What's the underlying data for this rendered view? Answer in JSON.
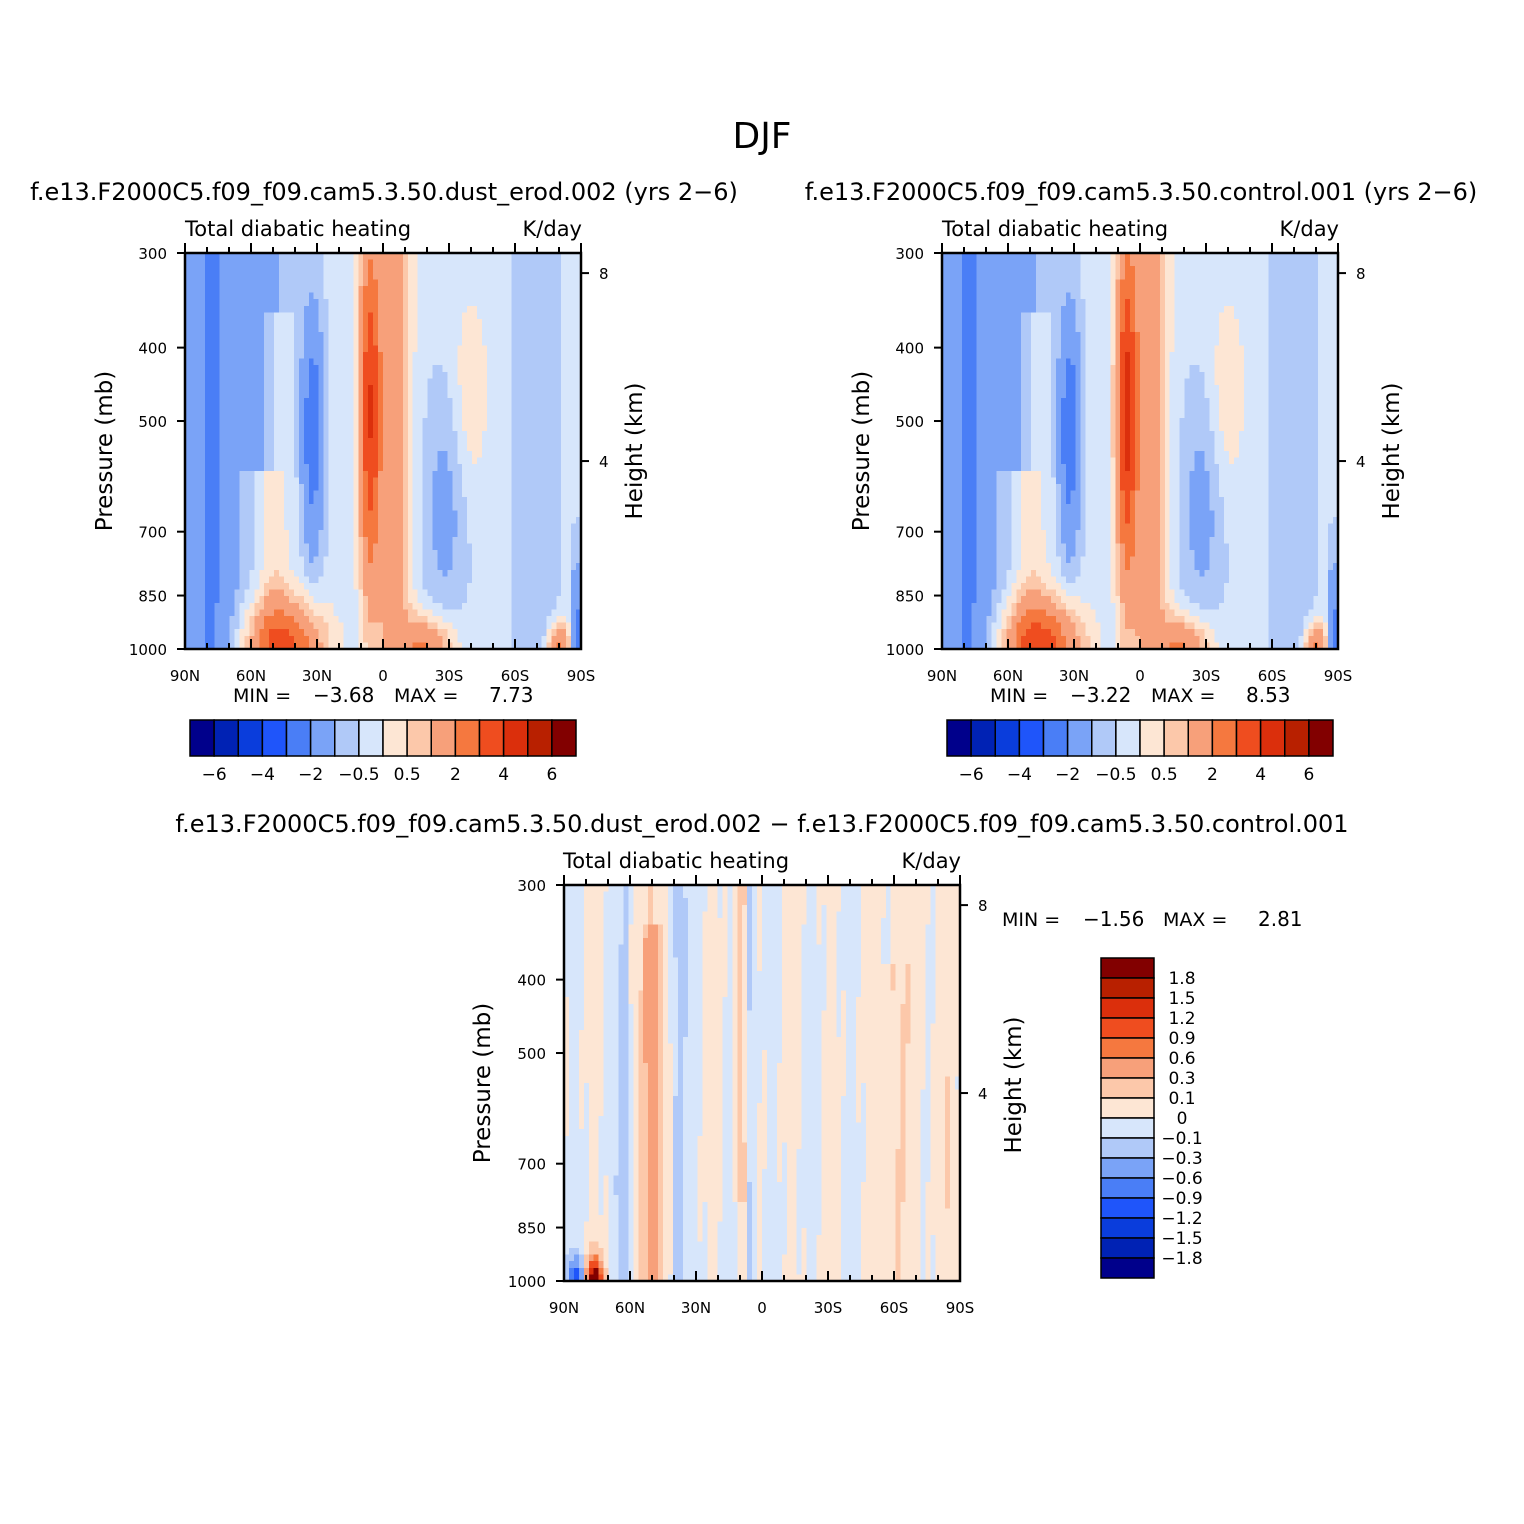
{
  "page_title": "DJF",
  "chart_data": [
    {
      "type": "heatmap",
      "id": "p1",
      "title": "f.e13.F2000C5.f09_f09.cam5.3.50.dust_erod.002 (yrs 2-6)",
      "left_label": "Total diabatic heating",
      "right_label": "K/day",
      "xlabel": "",
      "ylabel": "Pressure (mb)",
      "ylabel_right": "Height (km)",
      "x_ticks": [
        "90N",
        "60N",
        "30N",
        "0",
        "30S",
        "60S",
        "90S"
      ],
      "x_values": [
        90,
        60,
        30,
        0,
        -30,
        -60,
        -90
      ],
      "y_ticks": [
        "300",
        "400",
        "500",
        "700",
        "850",
        "1000"
      ],
      "y_values": [
        300,
        400,
        500,
        700,
        850,
        1000
      ],
      "ylim": [
        1000,
        300
      ],
      "y_log": true,
      "right_ticks": [
        "8",
        "4"
      ],
      "right_values": [
        8,
        4
      ],
      "min_label": "MIN =",
      "min_value": "-3.68",
      "max_label": "MAX =",
      "max_value": "7.73",
      "levels": [
        -6,
        -5,
        -4,
        -3,
        -2,
        -1,
        -0.5,
        0,
        0.5,
        1,
        2,
        3,
        4,
        5,
        6
      ],
      "colorbar_labels": [
        "-6",
        "-4",
        "-2",
        "-0.5",
        "0.5",
        "2",
        "4",
        "6"
      ],
      "field_variant": 0
    },
    {
      "type": "heatmap",
      "id": "p2",
      "title": "f.e13.F2000C5.f09_f09.cam5.3.50.control.001 (yrs 2-6)",
      "left_label": "Total diabatic heating",
      "right_label": "K/day",
      "xlabel": "",
      "ylabel": "Pressure (mb)",
      "ylabel_right": "Height (km)",
      "x_ticks": [
        "90N",
        "60N",
        "30N",
        "0",
        "30S",
        "60S",
        "90S"
      ],
      "x_values": [
        90,
        60,
        30,
        0,
        -30,
        -60,
        -90
      ],
      "y_ticks": [
        "300",
        "400",
        "500",
        "700",
        "850",
        "1000"
      ],
      "y_values": [
        300,
        400,
        500,
        700,
        850,
        1000
      ],
      "ylim": [
        1000,
        300
      ],
      "y_log": true,
      "right_ticks": [
        "8",
        "4"
      ],
      "right_values": [
        8,
        4
      ],
      "min_label": "MIN =",
      "min_value": "-3.22",
      "max_label": "MAX =",
      "max_value": "8.53",
      "levels": [
        -6,
        -5,
        -4,
        -3,
        -2,
        -1,
        -0.5,
        0,
        0.5,
        1,
        2,
        3,
        4,
        5,
        6
      ],
      "colorbar_labels": [
        "-6",
        "-4",
        "-2",
        "-0.5",
        "0.5",
        "2",
        "4",
        "6"
      ],
      "field_variant": 1
    },
    {
      "type": "heatmap",
      "id": "p3",
      "title": "f.e13.F2000C5.f09_f09.cam5.3.50.dust_erod.002 - f.e13.F2000C5.f09_f09.cam5.3.50.control.001",
      "left_label": "Total diabatic heating",
      "right_label": "K/day",
      "xlabel": "",
      "ylabel": "Pressure (mb)",
      "ylabel_right": "Height (km)",
      "x_ticks": [
        "90N",
        "60N",
        "30N",
        "0",
        "30S",
        "60S",
        "90S"
      ],
      "x_values": [
        90,
        60,
        30,
        0,
        -30,
        -60,
        -90
      ],
      "y_ticks": [
        "300",
        "400",
        "500",
        "700",
        "850",
        "1000"
      ],
      "y_values": [
        300,
        400,
        500,
        700,
        850,
        1000
      ],
      "ylim": [
        1000,
        300
      ],
      "y_log": true,
      "right_ticks": [
        "8",
        "4"
      ],
      "right_values": [
        8,
        4
      ],
      "min_label": "MIN =",
      "min_value": "-1.56",
      "max_label": "MAX =",
      "max_value": "2.81",
      "levels": [
        -1.8,
        -1.5,
        -1.2,
        -0.9,
        -0.6,
        -0.3,
        -0.1,
        0,
        0.1,
        0.3,
        0.6,
        0.9,
        1.2,
        1.5,
        1.8
      ],
      "colorbar_labels": [
        "1.8",
        "1.5",
        "1.2",
        "0.9",
        "0.6",
        "0.3",
        "0.1",
        "0",
        "-0.1",
        "-0.3",
        "-0.6",
        "-0.9",
        "-1.2",
        "-1.5",
        "-1.8"
      ],
      "field_variant": 2
    }
  ],
  "colormap": [
    "#00008b",
    "#0022b4",
    "#0a3ddc",
    "#1f55fa",
    "#4a7ef6",
    "#7aa3f7",
    "#b0c9f8",
    "#d7e6fb",
    "#fde6d4",
    "#fcc8aa",
    "#f7a07a",
    "#f5783f",
    "#ef4d1f",
    "#db2f0c",
    "#b82000",
    "#820000"
  ]
}
